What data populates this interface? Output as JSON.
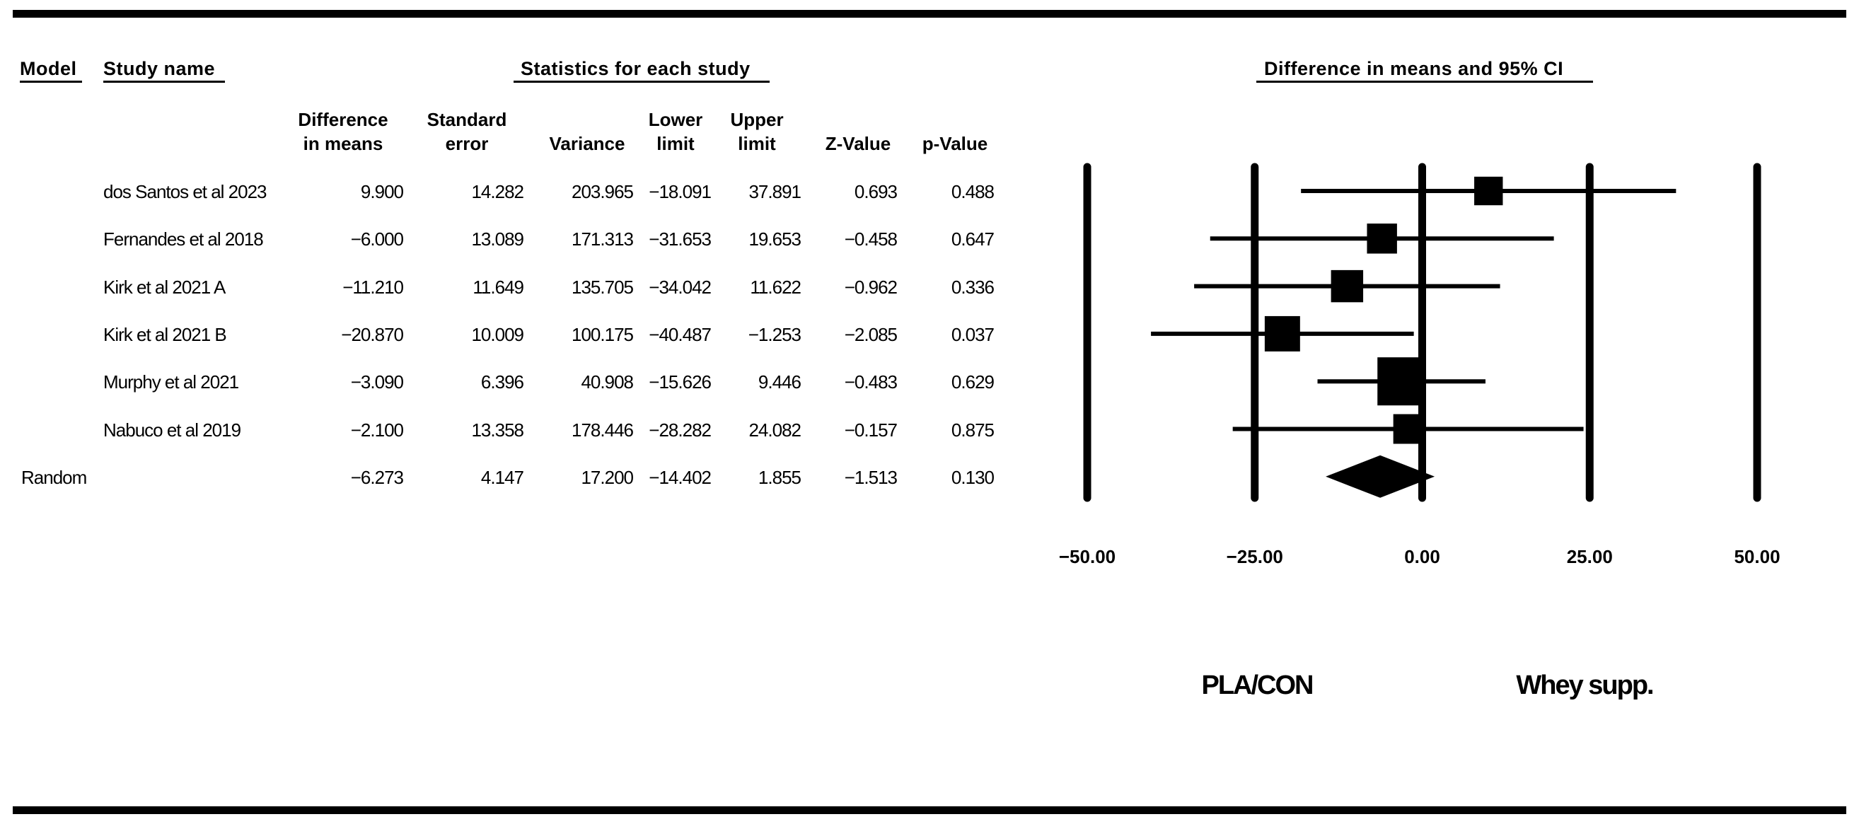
{
  "headers": {
    "model": "Model",
    "study_name": "Study name",
    "statistics": "Statistics for each study",
    "plot_title": "Difference in means and 95% CI"
  },
  "columns": [
    [
      "Difference",
      "in means"
    ],
    [
      "Standard",
      "error"
    ],
    [
      "",
      "Variance"
    ],
    [
      "Lower",
      "limit"
    ],
    [
      "Upper",
      "limit"
    ],
    [
      "",
      "Z-Value"
    ],
    [
      "",
      "p-Value"
    ]
  ],
  "rows": [
    {
      "model": "",
      "study": "dos Santos et al 2023",
      "diff": "9.900",
      "se": "14.282",
      "var": "203.965",
      "lower": "−18.091",
      "upper": "37.891",
      "z": "0.693",
      "p": "0.488"
    },
    {
      "model": "",
      "study": " Fernandes et al 2018",
      "diff": "−6.000",
      "se": "13.089",
      "var": "171.313",
      "lower": "−31.653",
      "upper": "19.653",
      "z": "−0.458",
      "p": "0.647"
    },
    {
      "model": "",
      "study": "Kirk et al 2021 A",
      "diff": "−11.210",
      "se": "11.649",
      "var": "135.705",
      "lower": "−34.042",
      "upper": "11.622",
      "z": "−0.962",
      "p": "0.336"
    },
    {
      "model": "",
      "study": "Kirk et al 2021 B",
      "diff": "−20.870",
      "se": "10.009",
      "var": "100.175",
      "lower": "−40.487",
      "upper": "−1.253",
      "z": "−2.085",
      "p": "0.037"
    },
    {
      "model": "",
      "study": "Murphy et al 2021",
      "diff": "−3.090",
      "se": "6.396",
      "var": "40.908",
      "lower": "−15.626",
      "upper": "9.446",
      "z": "−0.483",
      "p": "0.629"
    },
    {
      "model": "",
      "study": "Nabuco et al 2019",
      "diff": "−2.100",
      "se": "13.358",
      "var": "178.446",
      "lower": "−28.282",
      "upper": "24.082",
      "z": "−0.157",
      "p": "0.875"
    },
    {
      "model": "Random",
      "study": "",
      "diff": "−6.273",
      "se": "4.147",
      "var": "17.200",
      "lower": "−14.402",
      "upper": "1.855",
      "z": "−1.513",
      "p": "0.130"
    }
  ],
  "axis": {
    "ticks": [
      "−50.00",
      "−25.00",
      "0.00",
      "25.00",
      "50.00"
    ],
    "left_label": "PLA/CON",
    "right_label": "Whey supp."
  },
  "chart_data": {
    "type": "scatter",
    "title": "Difference in means and 95% CI",
    "xlim": [
      -50,
      50
    ],
    "xticks": [
      -50,
      -25,
      0,
      25,
      50
    ],
    "grid": true,
    "xlabel_left": "PLA/CON",
    "xlabel_right": "Whey supp.",
    "series": [
      {
        "name": "dos Santos et al 2023",
        "estimate": 9.9,
        "lower": -18.091,
        "upper": 37.891,
        "weight_variance": 203.965
      },
      {
        "name": "Fernandes et al 2018",
        "estimate": -6.0,
        "lower": -31.653,
        "upper": 19.653,
        "weight_variance": 171.313
      },
      {
        "name": "Kirk et al 2021 A",
        "estimate": -11.21,
        "lower": -34.042,
        "upper": 11.622,
        "weight_variance": 135.705
      },
      {
        "name": "Kirk et al 2021 B",
        "estimate": -20.87,
        "lower": -40.487,
        "upper": -1.253,
        "weight_variance": 100.175
      },
      {
        "name": "Murphy et al 2021",
        "estimate": -3.09,
        "lower": -15.626,
        "upper": 9.446,
        "weight_variance": 40.908
      },
      {
        "name": "Nabuco et al 2019",
        "estimate": -2.1,
        "lower": -28.282,
        "upper": 24.082,
        "weight_variance": 178.446
      }
    ],
    "summary": {
      "name": "Random",
      "estimate": -6.273,
      "lower": -14.402,
      "upper": 1.855
    }
  }
}
